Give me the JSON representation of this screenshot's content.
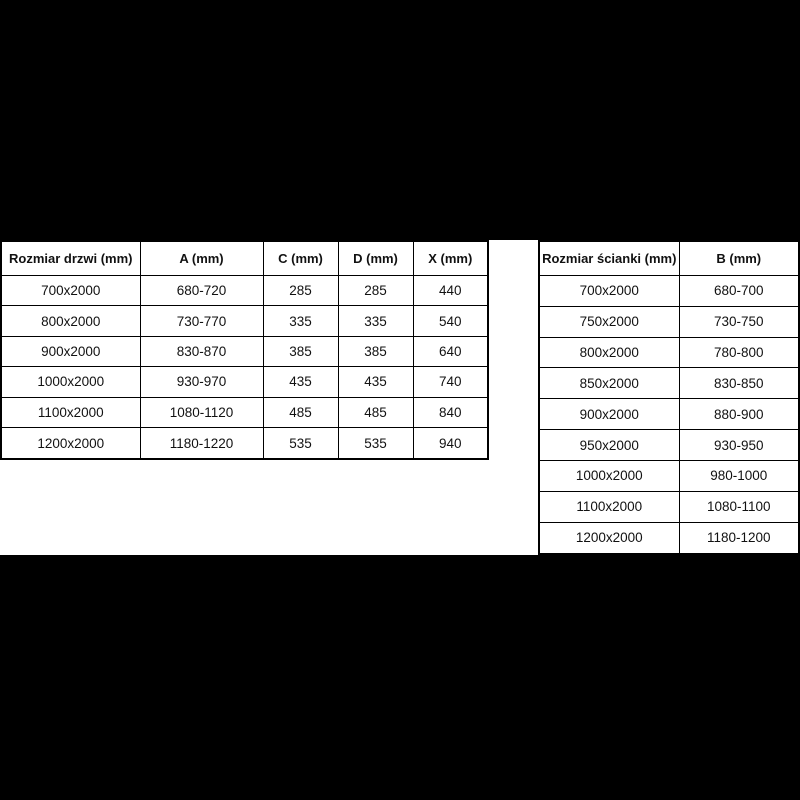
{
  "colors": {
    "background": "#000000",
    "panel": "#ffffff",
    "border": "#000000",
    "text": "#111111"
  },
  "door_table": {
    "headers": [
      "Rozmiar drzwi (mm)",
      "A (mm)",
      "C (mm)",
      "D (mm)",
      "X (mm)"
    ],
    "rows": [
      [
        "700x2000",
        "680-720",
        "285",
        "285",
        "440"
      ],
      [
        "800x2000",
        "730-770",
        "335",
        "335",
        "540"
      ],
      [
        "900x2000",
        "830-870",
        "385",
        "385",
        "640"
      ],
      [
        "1000x2000",
        "930-970",
        "435",
        "435",
        "740"
      ],
      [
        "1100x2000",
        "1080-1120",
        "485",
        "485",
        "840"
      ],
      [
        "1200x2000",
        "1180-1220",
        "535",
        "535",
        "940"
      ]
    ]
  },
  "wall_table": {
    "headers": [
      "Rozmiar ścianki (mm)",
      "B (mm)"
    ],
    "rows": [
      [
        "700x2000",
        "680-700"
      ],
      [
        "750x2000",
        "730-750"
      ],
      [
        "800x2000",
        "780-800"
      ],
      [
        "850x2000",
        "830-850"
      ],
      [
        "900x2000",
        "880-900"
      ],
      [
        "950x2000",
        "930-950"
      ],
      [
        "1000x2000",
        "980-1000"
      ],
      [
        "1100x2000",
        "1080-1100"
      ],
      [
        "1200x2000",
        "1180-1200"
      ]
    ]
  }
}
